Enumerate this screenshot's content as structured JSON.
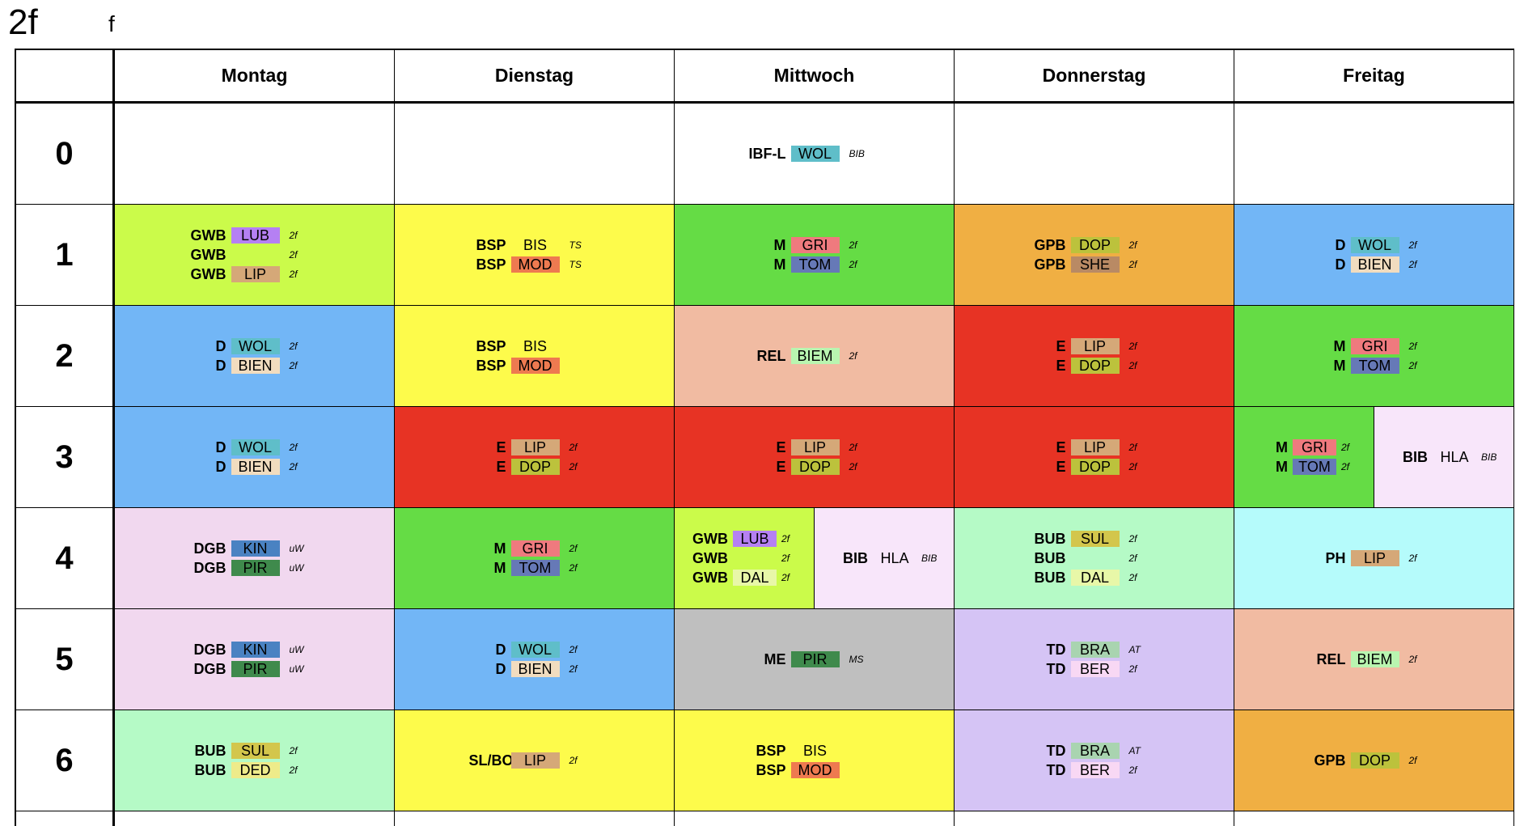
{
  "header": {
    "title": "2f",
    "subtitle": "f"
  },
  "days": [
    "Montag",
    "Dienstag",
    "Mittwoch",
    "Donnerstag",
    "Freitag"
  ],
  "periods": [
    "0",
    "1",
    "2",
    "3",
    "4",
    "5",
    "6"
  ],
  "colors": {
    "lime": "#cbfb4a",
    "yellow": "#fdfb4b",
    "green": "#65dc45",
    "orange": "#f0af43",
    "blue": "#72b6f6",
    "salmon": "#f1bba2",
    "red": "#e73324",
    "lavender": "#f8e6fa",
    "pink": "#f1d8ef",
    "mint": "#b5fac6",
    "cyan": "#b5fbfb",
    "gray": "#bfbfbf",
    "purple": "#d5c4f5",
    "white": "#ffffff"
  },
  "schedule": [
    [
      {
        "bg": "white",
        "parts": [
          []
        ]
      },
      {
        "bg": "white",
        "parts": [
          []
        ]
      },
      {
        "bg": "white",
        "parts": [
          [
            {
              "s": "IBF-L",
              "t": "WOL",
              "tc": "#5fbec9",
              "r": "BIB"
            }
          ]
        ]
      },
      {
        "bg": "white",
        "parts": [
          []
        ]
      },
      {
        "bg": "white",
        "parts": [
          []
        ]
      }
    ],
    [
      {
        "bg": "lime",
        "parts": [
          [
            {
              "s": "GWB",
              "t": "LUB",
              "tc": "#b580f3",
              "r": "2f"
            },
            {
              "s": "GWB",
              "t": "",
              "tc": "",
              "r": "2f"
            },
            {
              "s": "GWB",
              "t": "LIP",
              "tc": "#d5a878",
              "r": "2f"
            }
          ]
        ]
      },
      {
        "bg": "yellow",
        "parts": [
          [
            {
              "s": "BSP",
              "t": "BIS",
              "tc": "",
              "r": "TS"
            },
            {
              "s": "BSP",
              "t": "MOD",
              "tc": "#ee7a50",
              "r": "TS"
            }
          ]
        ]
      },
      {
        "bg": "green",
        "parts": [
          [
            {
              "s": "M",
              "t": "GRI",
              "tc": "#ef7a7e",
              "r": "2f"
            },
            {
              "s": "M",
              "t": "TOM",
              "tc": "#6679b7",
              "r": "2f"
            }
          ]
        ]
      },
      {
        "bg": "orange",
        "parts": [
          [
            {
              "s": "GPB",
              "t": "DOP",
              "tc": "#bcc23c",
              "r": "2f"
            },
            {
              "s": "GPB",
              "t": "SHE",
              "tc": "#b98a64",
              "r": "2f"
            }
          ]
        ]
      },
      {
        "bg": "blue",
        "parts": [
          [
            {
              "s": "D",
              "t": "WOL",
              "tc": "#5fbec9",
              "r": "2f"
            },
            {
              "s": "D",
              "t": "BIEN",
              "tc": "#f1dcbf",
              "r": "2f"
            }
          ]
        ]
      }
    ],
    [
      {
        "bg": "blue",
        "parts": [
          [
            {
              "s": "D",
              "t": "WOL",
              "tc": "#5fbec9",
              "r": "2f"
            },
            {
              "s": "D",
              "t": "BIEN",
              "tc": "#f1dcbf",
              "r": "2f"
            }
          ]
        ]
      },
      {
        "bg": "yellow",
        "parts": [
          [
            {
              "s": "BSP",
              "t": "BIS",
              "tc": "",
              "r": ""
            },
            {
              "s": "BSP",
              "t": "MOD",
              "tc": "#ee7a50",
              "r": ""
            }
          ]
        ]
      },
      {
        "bg": "salmon",
        "parts": [
          [
            {
              "s": "REL",
              "t": "BIEM",
              "tc": "#b9f5b0",
              "r": "2f"
            }
          ]
        ]
      },
      {
        "bg": "red",
        "parts": [
          [
            {
              "s": "E",
              "t": "LIP",
              "tc": "#d5a878",
              "r": "2f"
            },
            {
              "s": "E",
              "t": "DOP",
              "tc": "#bcc23c",
              "r": "2f"
            }
          ]
        ]
      },
      {
        "bg": "green",
        "parts": [
          [
            {
              "s": "M",
              "t": "GRI",
              "tc": "#ef7a7e",
              "r": "2f"
            },
            {
              "s": "M",
              "t": "TOM",
              "tc": "#6679b7",
              "r": "2f"
            }
          ]
        ]
      }
    ],
    [
      {
        "bg": "blue",
        "parts": [
          [
            {
              "s": "D",
              "t": "WOL",
              "tc": "#5fbec9",
              "r": "2f"
            },
            {
              "s": "D",
              "t": "BIEN",
              "tc": "#f1dcbf",
              "r": "2f"
            }
          ]
        ]
      },
      {
        "bg": "red",
        "parts": [
          [
            {
              "s": "E",
              "t": "LIP",
              "tc": "#d5a878",
              "r": "2f"
            },
            {
              "s": "E",
              "t": "DOP",
              "tc": "#bcc23c",
              "r": "2f"
            }
          ]
        ]
      },
      {
        "bg": "red",
        "parts": [
          [
            {
              "s": "E",
              "t": "LIP",
              "tc": "#d5a878",
              "r": "2f"
            },
            {
              "s": "E",
              "t": "DOP",
              "tc": "#bcc23c",
              "r": "2f"
            }
          ]
        ]
      },
      {
        "bg": "red",
        "parts": [
          [
            {
              "s": "E",
              "t": "LIP",
              "tc": "#d5a878",
              "r": "2f"
            },
            {
              "s": "E",
              "t": "DOP",
              "tc": "#bcc23c",
              "r": "2f"
            }
          ]
        ]
      },
      {
        "bg": "green",
        "bg2": "lavender",
        "parts": [
          [
            {
              "s": "M",
              "t": "GRI",
              "tc": "#ef7a7e",
              "r": "2f"
            },
            {
              "s": "M",
              "t": "TOM",
              "tc": "#6679b7",
              "r": "2f"
            }
          ],
          [
            {
              "s": "BIB",
              "t": "HLA",
              "tc": "",
              "r": "BIB"
            }
          ]
        ]
      }
    ],
    [
      {
        "bg": "pink",
        "parts": [
          [
            {
              "s": "DGB",
              "t": "KIN",
              "tc": "#4a82c2",
              "r": "uW"
            },
            {
              "s": "DGB",
              "t": "PIR",
              "tc": "#3f8a4c",
              "r": "uW"
            }
          ]
        ]
      },
      {
        "bg": "green",
        "parts": [
          [
            {
              "s": "M",
              "t": "GRI",
              "tc": "#ef7a7e",
              "r": "2f"
            },
            {
              "s": "M",
              "t": "TOM",
              "tc": "#6679b7",
              "r": "2f"
            }
          ]
        ]
      },
      {
        "bg": "lime",
        "bg2": "lavender",
        "parts": [
          [
            {
              "s": "GWB",
              "t": "LUB",
              "tc": "#b580f3",
              "r": "2f"
            },
            {
              "s": "GWB",
              "t": "",
              "tc": "",
              "r": "2f"
            },
            {
              "s": "GWB",
              "t": "DAL",
              "tc": "#e8f7a8",
              "r": "2f"
            }
          ],
          [
            {
              "s": "BIB",
              "t": "HLA",
              "tc": "",
              "r": "BIB"
            }
          ]
        ]
      },
      {
        "bg": "mint",
        "parts": [
          [
            {
              "s": "BUB",
              "t": "SUL",
              "tc": "#d3c64c",
              "r": "2f"
            },
            {
              "s": "BUB",
              "t": "",
              "tc": "",
              "r": "2f"
            },
            {
              "s": "BUB",
              "t": "DAL",
              "tc": "#e8f7a8",
              "r": "2f"
            }
          ]
        ]
      },
      {
        "bg": "cyan",
        "parts": [
          [
            {
              "s": "PH",
              "t": "LIP",
              "tc": "#d5a878",
              "r": "2f"
            }
          ]
        ]
      }
    ],
    [
      {
        "bg": "pink",
        "parts": [
          [
            {
              "s": "DGB",
              "t": "KIN",
              "tc": "#4a82c2",
              "r": "uW"
            },
            {
              "s": "DGB",
              "t": "PIR",
              "tc": "#3f8a4c",
              "r": "uW"
            }
          ]
        ]
      },
      {
        "bg": "blue",
        "parts": [
          [
            {
              "s": "D",
              "t": "WOL",
              "tc": "#5fbec9",
              "r": "2f"
            },
            {
              "s": "D",
              "t": "BIEN",
              "tc": "#f1dcbf",
              "r": "2f"
            }
          ]
        ]
      },
      {
        "bg": "gray",
        "parts": [
          [
            {
              "s": "ME",
              "t": "PIR",
              "tc": "#3f8a4c",
              "r": "MS"
            }
          ]
        ]
      },
      {
        "bg": "purple",
        "parts": [
          [
            {
              "s": "TD",
              "t": "BRA",
              "tc": "#a9d4b0",
              "r": "AT"
            },
            {
              "s": "TD",
              "t": "BER",
              "tc": "#f8d8f4",
              "r": "2f"
            }
          ]
        ]
      },
      {
        "bg": "salmon",
        "parts": [
          [
            {
              "s": "REL",
              "t": "BIEM",
              "tc": "#b9f5b0",
              "r": "2f"
            }
          ]
        ]
      }
    ],
    [
      {
        "bg": "mint",
        "parts": [
          [
            {
              "s": "BUB",
              "t": "SUL",
              "tc": "#d3c64c",
              "r": "2f"
            },
            {
              "s": "BUB",
              "t": "DED",
              "tc": "#eeeb8a",
              "r": "2f"
            }
          ]
        ]
      },
      {
        "bg": "yellow",
        "parts": [
          [
            {
              "s": "SL/BO",
              "t": "LIP",
              "tc": "#d5a878",
              "r": "2f"
            }
          ]
        ]
      },
      {
        "bg": "yellow",
        "parts": [
          [
            {
              "s": "BSP",
              "t": "BIS",
              "tc": "",
              "r": ""
            },
            {
              "s": "BSP",
              "t": "MOD",
              "tc": "#ee7a50",
              "r": ""
            }
          ]
        ]
      },
      {
        "bg": "purple",
        "parts": [
          [
            {
              "s": "TD",
              "t": "BRA",
              "tc": "#a9d4b0",
              "r": "AT"
            },
            {
              "s": "TD",
              "t": "BER",
              "tc": "#f8d8f4",
              "r": "2f"
            }
          ]
        ]
      },
      {
        "bg": "orange",
        "parts": [
          [
            {
              "s": "GPB",
              "t": "DOP",
              "tc": "#bcc23c",
              "r": "2f"
            }
          ]
        ]
      }
    ]
  ]
}
